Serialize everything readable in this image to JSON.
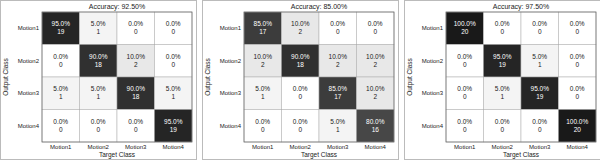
{
  "chart_data": [
    {
      "type": "heatmap",
      "title": "Accuracy: 92.50%",
      "x_label": "Target Class",
      "y_label": "Output Class",
      "x": [
        "Motion1",
        "Motion2",
        "Motion3",
        "Motion4"
      ],
      "y": [
        "Motion1",
        "Motion2",
        "Motion3",
        "Motion4"
      ],
      "cells": [
        [
          95,
          5,
          0,
          0
        ],
        [
          0,
          90,
          10,
          0
        ],
        [
          5,
          5,
          90,
          5
        ],
        [
          0,
          0,
          0,
          95
        ]
      ],
      "value_labels": [
        [
          "95.0%",
          "5.0%",
          "0.0%",
          "0.0%"
        ],
        [
          "0.0%",
          "90.0%",
          "10.0%",
          "0.0%"
        ],
        [
          "5.0%",
          "5.0%",
          "90.0%",
          "5.0%"
        ],
        [
          "0.0%",
          "0.0%",
          "0.0%",
          "95.0%"
        ]
      ],
      "counts": [
        [
          19,
          1,
          0,
          0
        ],
        [
          0,
          18,
          2,
          0
        ],
        [
          1,
          1,
          18,
          1
        ],
        [
          0,
          0,
          0,
          19
        ]
      ]
    },
    {
      "type": "heatmap",
      "title": "Accuracy: 85.00%",
      "x_label": "Target Class",
      "y_label": "Output Class",
      "x": [
        "Motion1",
        "Motion2",
        "Motion3",
        "Motion4"
      ],
      "y": [
        "Motion1",
        "Motion2",
        "Motion3",
        "Motion4"
      ],
      "cells": [
        [
          85,
          10,
          0,
          0
        ],
        [
          10,
          90,
          10,
          10
        ],
        [
          5,
          0,
          85,
          10
        ],
        [
          0,
          0,
          5,
          80
        ]
      ],
      "value_labels": [
        [
          "85.0%",
          "10.0%",
          "0.0%",
          "0.0%"
        ],
        [
          "10.0%",
          "90.0%",
          "10.0%",
          "10.0%"
        ],
        [
          "5.0%",
          "0.0%",
          "85.0%",
          "10.0%"
        ],
        [
          "0.0%",
          "0.0%",
          "5.0%",
          "80.0%"
        ]
      ],
      "counts": [
        [
          17,
          2,
          0,
          0
        ],
        [
          2,
          18,
          2,
          2
        ],
        [
          1,
          0,
          17,
          2
        ],
        [
          0,
          0,
          1,
          16
        ]
      ]
    },
    {
      "type": "heatmap",
      "title": "Accuracy: 97.50%",
      "x_label": "Target Class",
      "y_label": "Output Class",
      "x": [
        "Motion1",
        "Motion2",
        "Motion3",
        "Motion4"
      ],
      "y": [
        "Motion1",
        "Motion2",
        "Motion3",
        "Motion4"
      ],
      "cells": [
        [
          100,
          0,
          0,
          0
        ],
        [
          0,
          95,
          5,
          0
        ],
        [
          0,
          5,
          95,
          0
        ],
        [
          0,
          0,
          0,
          100
        ]
      ],
      "value_labels": [
        [
          "100.0%",
          "0.0%",
          "0.0%",
          "0.0%"
        ],
        [
          "0.0%",
          "95.0%",
          "5.0%",
          "0.0%"
        ],
        [
          "0.0%",
          "5.0%",
          "95.0%",
          "0.0%"
        ],
        [
          "0.0%",
          "0.0%",
          "0.0%",
          "100.0%"
        ]
      ],
      "counts": [
        [
          20,
          0,
          0,
          0
        ],
        [
          0,
          19,
          1,
          0
        ],
        [
          0,
          1,
          19,
          0
        ],
        [
          0,
          0,
          0,
          20
        ]
      ]
    }
  ]
}
